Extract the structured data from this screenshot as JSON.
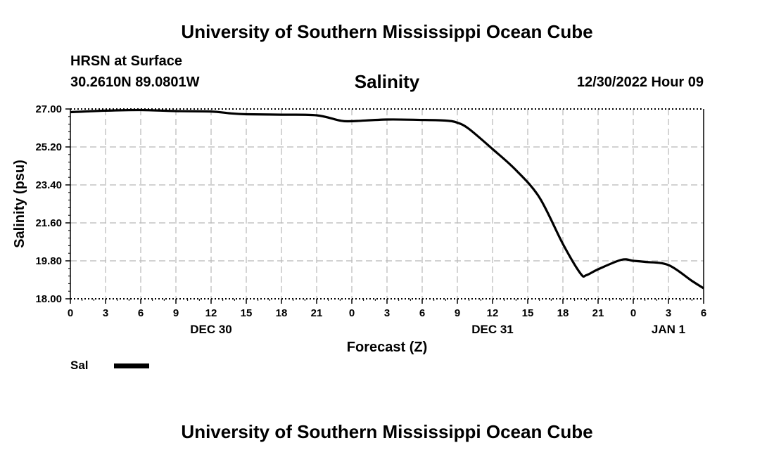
{
  "header": {
    "top_title": "University of Southern Mississippi Ocean Cube",
    "station": "HRSN at Surface",
    "coords": "30.2610N  89.0801W",
    "datetime": "12/30/2022 Hour 09"
  },
  "footer": {
    "bottom_title": "University of Southern Mississippi Ocean Cube"
  },
  "legend": {
    "label": "Sal",
    "color": "#000000"
  },
  "chart_data": {
    "type": "line",
    "title": "Salinity",
    "xlabel": "Forecast (Z)",
    "ylabel": "Salinity (psu)",
    "ylim": [
      18.0,
      27.0
    ],
    "xlim": [
      0,
      54
    ],
    "yticks": [
      "18.00",
      "19.80",
      "21.60",
      "23.40",
      "25.20",
      "27.00"
    ],
    "xticks": [
      "0",
      "3",
      "6",
      "9",
      "12",
      "15",
      "18",
      "21",
      "0",
      "3",
      "6",
      "9",
      "12",
      "15",
      "18",
      "21",
      "0",
      "3",
      "6"
    ],
    "day_labels": [
      {
        "label": "DEC 30",
        "hour": 12
      },
      {
        "label": "DEC 31",
        "hour": 36
      },
      {
        "label": "JAN 1",
        "hour": 51
      }
    ],
    "grid": true,
    "series": [
      {
        "name": "Sal",
        "color": "#000000",
        "x": [
          0,
          3,
          6,
          9,
          12,
          13.5,
          15,
          18,
          21,
          23,
          24,
          27,
          30,
          32,
          33,
          34,
          36,
          38,
          40,
          42,
          43.5,
          44,
          45,
          47,
          48,
          49,
          51,
          53,
          54
        ],
        "y": [
          26.85,
          26.92,
          26.95,
          26.9,
          26.88,
          26.8,
          26.75,
          26.73,
          26.7,
          26.45,
          26.42,
          26.5,
          26.48,
          26.45,
          26.35,
          26.05,
          25.1,
          24.1,
          22.8,
          20.6,
          19.2,
          19.12,
          19.4,
          19.85,
          19.8,
          19.75,
          19.6,
          18.85,
          18.5
        ]
      }
    ]
  }
}
